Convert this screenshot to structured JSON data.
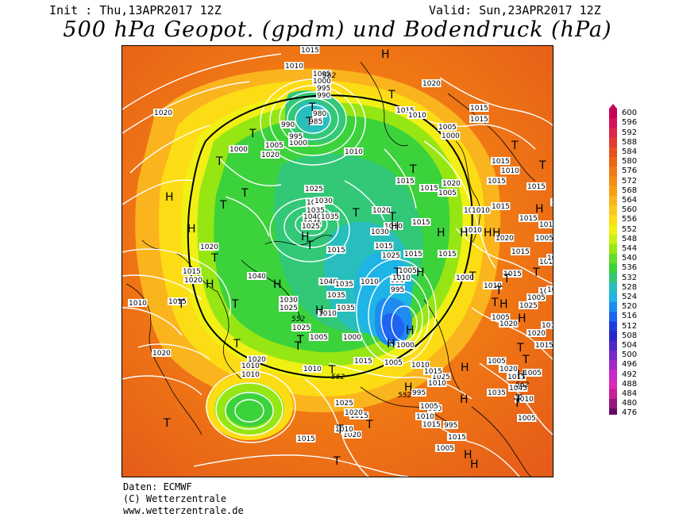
{
  "header": {
    "init": "Init : Thu,13APR2017 12Z",
    "valid": "Valid: Sun,23APR2017 12Z",
    "title": "500 hPa Geopot. (gpdm) und Bodendruck (hPa)"
  },
  "legend": {
    "labels": [
      "600",
      "596",
      "592",
      "588",
      "584",
      "580",
      "576",
      "572",
      "568",
      "564",
      "560",
      "556",
      "552",
      "548",
      "544",
      "540",
      "536",
      "532",
      "528",
      "524",
      "520",
      "516",
      "512",
      "508",
      "504",
      "500",
      "496",
      "492",
      "488",
      "484",
      "480",
      "476"
    ],
    "colors": [
      "#c8005a",
      "#d4145a",
      "#dc2846",
      "#e43c32",
      "#e8501e",
      "#ec6414",
      "#f07814",
      "#f48c14",
      "#f8a014",
      "#fab41e",
      "#fcc81e",
      "#fcdc14",
      "#f0f014",
      "#c8f014",
      "#96e614",
      "#64dc28",
      "#3cd23c",
      "#32c878",
      "#28bebe",
      "#1eb4e6",
      "#1e8cf0",
      "#1e64f0",
      "#1e3cdc",
      "#2828c8",
      "#5028c8",
      "#7828c8",
      "#a028c8",
      "#c828c8",
      "#dc28b4",
      "#c81e96",
      "#96147d",
      "#640a64"
    ]
  },
  "map": {
    "pressure_labels": [
      "1020",
      "1015",
      "1010",
      "1005",
      "1000",
      "995",
      "990",
      "980",
      "985",
      "990",
      "1000",
      "995",
      "1000",
      "1005",
      "1010",
      "1015",
      "1015",
      "1020",
      "1025",
      "1030",
      "1035",
      "1040",
      "1045",
      "1035",
      "1030",
      "1025",
      "1035",
      "1040",
      "1035",
      "1035",
      "1030",
      "1025",
      "1040",
      "1020",
      "1020",
      "1015",
      "1015",
      "1010",
      "1020",
      "1020",
      "1010",
      "1010",
      "1015",
      "1020",
      "1015",
      "1010",
      "1005",
      "1000",
      "995",
      "990",
      "1025",
      "1020",
      "1015",
      "1010",
      "1005",
      "1000",
      "1010",
      "1005",
      "1015",
      "1015",
      "1015",
      "1015",
      "1010",
      "1015",
      "1005",
      "1000",
      "1010",
      "1015",
      "1005",
      "1020",
      "1015",
      "1015",
      "1010",
      "1005",
      "1000",
      "995",
      "990",
      "1005",
      "1010",
      "1015",
      "1025",
      "1030",
      "1020",
      "1025",
      "1010",
      "1005",
      "995",
      "1015",
      "1010",
      "1010",
      "1015",
      "1020",
      "1015",
      "1015",
      "1015",
      "1015",
      "1010",
      "1005",
      "1020",
      "1015",
      "1010",
      "1005",
      "1020",
      "1015",
      "1015",
      "1010",
      "1010",
      "1005",
      "1020",
      "1025",
      "1005",
      "1015",
      "1005",
      "1015",
      "1035",
      "1045",
      "1005",
      "1015",
      "1020",
      "1020",
      "1015",
      "1010",
      "1025",
      "1010",
      "1015",
      "1010",
      "1015",
      "1020"
    ],
    "extra_labels": [
      "562",
      "552",
      "552",
      "562",
      "562"
    ],
    "highs_lows": [
      "H",
      "T",
      "T",
      "T",
      "T",
      "T",
      "T",
      "T",
      "H",
      "H",
      "T",
      "T",
      "T",
      "H",
      "T",
      "T",
      "T",
      "H",
      "H",
      "H",
      "T",
      "H",
      "H",
      "T",
      "T",
      "T",
      "T",
      "T",
      "H",
      "T",
      "H",
      "T",
      "H",
      "T",
      "T",
      "H",
      "T",
      "H",
      "H",
      "T",
      "H",
      "H",
      "H",
      "T",
      "T",
      "T",
      "T",
      "H",
      "H",
      "H",
      "T",
      "T",
      "T",
      "H",
      "T",
      "H",
      "H",
      "T"
    ]
  },
  "footer": {
    "source": "Daten: ECMWF",
    "copyright": "(C) Wetterzentrale",
    "website": "www.wetterzentrale.de"
  }
}
